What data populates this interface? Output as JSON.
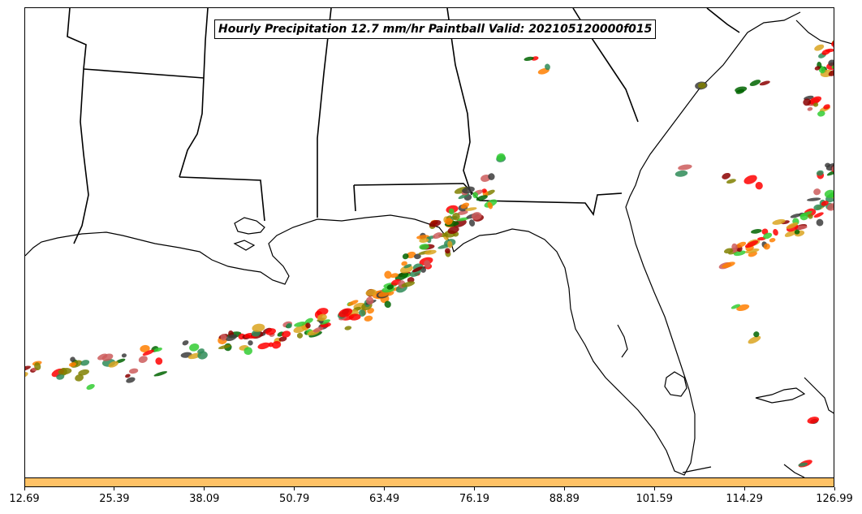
{
  "title": "Hourly Precipitation 12.7 mm/hr Paintball Valid: 202105120000f015",
  "colorbar": {
    "color": "#FFC266",
    "ticks": [
      "12.69",
      "25.39",
      "38.09",
      "50.79",
      "63.49",
      "76.19",
      "88.89",
      "101.59",
      "114.29",
      "126.99"
    ]
  },
  "paintball_colors": [
    "#FF0000",
    "#FF7F00",
    "#808000",
    "#006400",
    "#32CD32",
    "#8B0000",
    "#3C3C3C",
    "#DAA520",
    "#2E8B57",
    "#CD5C5C"
  ],
  "map": {
    "region": "Southeastern United States and Gulf of Mexico",
    "features": [
      "coastlines",
      "state boundaries",
      "precipitation paintball blobs"
    ]
  }
}
